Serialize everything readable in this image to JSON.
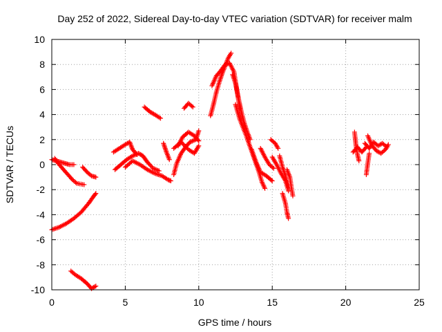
{
  "chart_data": {
    "type": "scatter",
    "title": "Day 252 of 2022, Sidereal Day-to-day VTEC variation (SDTVAR) for receiver malm",
    "xlabel": "GPS time / hours",
    "ylabel": "SDTVAR / TECUs",
    "xlim": [
      0,
      25
    ],
    "ylim": [
      -10,
      10
    ],
    "xticks": [
      "0",
      "5",
      "10",
      "15",
      "20",
      "25"
    ],
    "yticks": [
      "-10",
      "-8",
      "-6",
      "-4",
      "-2",
      "0",
      "2",
      "4",
      "6",
      "8",
      "10"
    ],
    "grid": true,
    "marker": "+",
    "color": "#ff0000",
    "segments": [
      {
        "points": [
          [
            0.0,
            0.4
          ],
          [
            0.3,
            0.3
          ],
          [
            0.6,
            0.2
          ],
          [
            0.9,
            0.1
          ],
          [
            1.2,
            0.0
          ],
          [
            1.5,
            0.0
          ]
        ]
      },
      {
        "points": [
          [
            0.2,
            0.5
          ],
          [
            0.5,
            0.0
          ],
          [
            0.8,
            -0.4
          ],
          [
            1.1,
            -0.8
          ],
          [
            1.4,
            -1.2
          ],
          [
            1.7,
            -1.5
          ],
          [
            2.2,
            -1.6
          ]
        ]
      },
      {
        "points": [
          [
            0.0,
            -5.2
          ],
          [
            0.5,
            -5.0
          ],
          [
            1.0,
            -4.7
          ],
          [
            1.5,
            -4.3
          ],
          [
            2.0,
            -3.8
          ],
          [
            2.5,
            -3.1
          ],
          [
            2.8,
            -2.6
          ],
          [
            3.0,
            -2.3
          ]
        ]
      },
      {
        "points": [
          [
            2.1,
            -0.2
          ],
          [
            2.4,
            -0.6
          ],
          [
            2.7,
            -0.9
          ],
          [
            3.0,
            -1.0
          ]
        ]
      },
      {
        "points": [
          [
            1.3,
            -8.5
          ],
          [
            1.6,
            -8.8
          ],
          [
            2.0,
            -9.1
          ],
          [
            2.4,
            -9.5
          ],
          [
            2.7,
            -9.9
          ],
          [
            3.0,
            -9.7
          ]
        ]
      },
      {
        "points": [
          [
            4.2,
            1.0
          ],
          [
            4.6,
            1.3
          ],
          [
            5.0,
            1.6
          ],
          [
            5.3,
            1.8
          ],
          [
            5.5,
            1.2
          ],
          [
            5.8,
            0.8
          ]
        ]
      },
      {
        "points": [
          [
            4.3,
            -0.4
          ],
          [
            4.7,
            0.0
          ],
          [
            5.1,
            0.4
          ],
          [
            5.5,
            0.7
          ],
          [
            5.9,
            0.9
          ],
          [
            6.2,
            0.7
          ],
          [
            6.5,
            0.2
          ],
          [
            6.9,
            -0.3
          ],
          [
            7.3,
            -0.5
          ]
        ]
      },
      {
        "points": [
          [
            5.0,
            -0.2
          ],
          [
            5.5,
            0.3
          ],
          [
            6.0,
            0.0
          ],
          [
            6.5,
            -0.4
          ],
          [
            7.0,
            -0.7
          ],
          [
            7.5,
            -0.9
          ],
          [
            7.9,
            -1.2
          ],
          [
            8.1,
            -1.3
          ]
        ]
      },
      {
        "points": [
          [
            6.3,
            4.6
          ],
          [
            6.7,
            4.2
          ],
          [
            7.0,
            4.0
          ],
          [
            7.4,
            3.7
          ]
        ]
      },
      {
        "points": [
          [
            7.6,
            1.7
          ],
          [
            7.8,
            1.0
          ],
          [
            8.0,
            0.4
          ]
        ]
      },
      {
        "points": [
          [
            8.3,
            -0.8
          ],
          [
            8.5,
            0.1
          ],
          [
            8.8,
            0.9
          ],
          [
            9.1,
            1.4
          ],
          [
            9.4,
            1.8
          ],
          [
            9.8,
            2.0
          ],
          [
            10.0,
            2.7
          ]
        ]
      },
      {
        "points": [
          [
            8.6,
            1.5
          ],
          [
            8.9,
            2.2
          ],
          [
            9.3,
            2.6
          ],
          [
            9.7,
            2.3
          ],
          [
            10.0,
            1.9
          ]
        ]
      },
      {
        "points": [
          [
            8.3,
            1.3
          ],
          [
            8.8,
            1.8
          ],
          [
            9.3,
            1.2
          ],
          [
            9.7,
            0.9
          ],
          [
            10.0,
            1.5
          ]
        ]
      },
      {
        "points": [
          [
            9.0,
            4.5
          ],
          [
            9.3,
            4.9
          ],
          [
            9.6,
            4.6
          ]
        ]
      },
      {
        "points": [
          [
            10.8,
            3.9
          ],
          [
            11.0,
            4.8
          ],
          [
            11.2,
            5.8
          ],
          [
            11.4,
            6.6
          ],
          [
            11.6,
            7.3
          ],
          [
            11.8,
            7.9
          ],
          [
            12.0,
            8.5
          ],
          [
            12.2,
            8.9
          ]
        ]
      },
      {
        "points": [
          [
            10.9,
            6.3
          ],
          [
            11.2,
            7.1
          ],
          [
            11.5,
            7.5
          ],
          [
            11.8,
            8.0
          ],
          [
            12.1,
            8.1
          ],
          [
            12.4,
            7.4
          ],
          [
            12.6,
            5.9
          ],
          [
            12.8,
            4.5
          ]
        ]
      },
      {
        "points": [
          [
            12.3,
            7.2
          ],
          [
            12.5,
            6.5
          ],
          [
            12.7,
            5.3
          ],
          [
            12.9,
            4.2
          ],
          [
            13.1,
            3.3
          ],
          [
            13.3,
            2.6
          ],
          [
            13.5,
            2.0
          ]
        ]
      },
      {
        "points": [
          [
            12.5,
            4.8
          ],
          [
            12.8,
            3.6
          ],
          [
            13.2,
            2.4
          ],
          [
            13.5,
            1.4
          ],
          [
            13.8,
            0.4
          ],
          [
            14.1,
            -0.6
          ],
          [
            14.3,
            -1.4
          ],
          [
            14.5,
            -1.9
          ]
        ]
      },
      {
        "points": [
          [
            13.6,
            1.2
          ],
          [
            13.9,
            0.2
          ],
          [
            14.2,
            -0.6
          ],
          [
            14.6,
            -0.9
          ],
          [
            15.0,
            -1.3
          ]
        ]
      },
      {
        "points": [
          [
            14.2,
            1.3
          ],
          [
            14.5,
            0.6
          ],
          [
            14.8,
            0.0
          ],
          [
            15.1,
            -0.3
          ]
        ]
      },
      {
        "points": [
          [
            14.9,
            2.0
          ],
          [
            15.2,
            1.7
          ],
          [
            15.4,
            1.3
          ]
        ]
      },
      {
        "points": [
          [
            15.0,
            0.6
          ],
          [
            15.3,
            0.0
          ],
          [
            15.6,
            -0.7
          ],
          [
            15.9,
            -1.3
          ],
          [
            16.1,
            -2.1
          ]
        ]
      },
      {
        "points": [
          [
            15.5,
            0.7
          ],
          [
            15.7,
            -0.2
          ],
          [
            15.9,
            -0.9
          ],
          [
            16.1,
            -1.8
          ]
        ]
      },
      {
        "points": [
          [
            15.7,
            -2.3
          ],
          [
            15.9,
            -3.1
          ],
          [
            16.0,
            -3.8
          ],
          [
            16.1,
            -4.3
          ]
        ]
      },
      {
        "points": [
          [
            16.0,
            -0.4
          ],
          [
            16.2,
            -1.0
          ],
          [
            16.3,
            -1.8
          ],
          [
            16.4,
            -2.5
          ]
        ]
      },
      {
        "points": [
          [
            20.6,
            2.6
          ],
          [
            20.7,
            1.5
          ],
          [
            20.8,
            0.8
          ],
          [
            20.9,
            0.3
          ]
        ]
      },
      {
        "points": [
          [
            20.5,
            1.0
          ],
          [
            20.8,
            1.4
          ],
          [
            21.1,
            1.0
          ],
          [
            21.4,
            1.4
          ]
        ]
      },
      {
        "points": [
          [
            21.3,
            1.7
          ],
          [
            21.6,
            1.3
          ],
          [
            21.9,
            1.8
          ],
          [
            22.2,
            1.5
          ],
          [
            22.5,
            1.7
          ],
          [
            22.8,
            1.4
          ]
        ]
      },
      {
        "points": [
          [
            21.5,
            2.3
          ],
          [
            21.8,
            1.5
          ],
          [
            22.1,
            1.1
          ],
          [
            22.4,
            0.9
          ],
          [
            22.7,
            1.2
          ],
          [
            22.9,
            1.6
          ]
        ]
      },
      {
        "points": [
          [
            21.6,
            0.9
          ],
          [
            21.5,
            0.1
          ],
          [
            21.4,
            -0.8
          ]
        ]
      }
    ]
  }
}
